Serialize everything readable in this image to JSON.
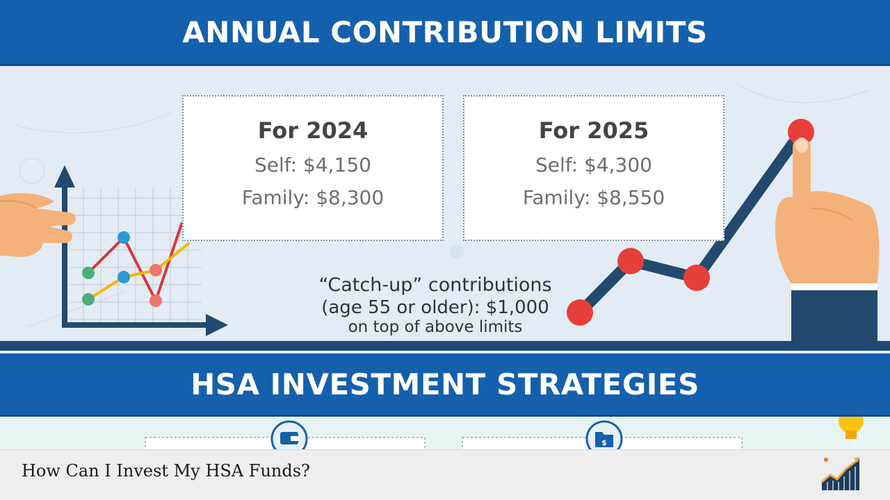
{
  "sections": {
    "contribution_title": "ANNUAL CONTRIBUTION LIMITS",
    "strategies_title": "HSA INVESTMENT STRATEGIES"
  },
  "cards": [
    {
      "year": "For 2024",
      "self": "Self: $4,150",
      "family": "Family: $8,300"
    },
    {
      "year": "For 2025",
      "self": "Self: $4,300",
      "family": "Family: $8,550"
    }
  ],
  "catchup": {
    "line1": "“Catch-up” contributions",
    "line2": "(age 55 or older): $1,000",
    "line3": "on top of above limits"
  },
  "caption": "How Can I Invest My HSA Funds?",
  "colors": {
    "banner_blue": "#1560ac",
    "dark_navy": "#234a6e",
    "marker_red": "#e63f3a",
    "line_orange": "#f7b500",
    "dot_green": "#4caf7d",
    "dot_blue": "#2d9ad6"
  },
  "icons": [
    "hand-left-icon",
    "growth-chart-icon",
    "pointing-hand-icon",
    "lightbulb-icon",
    "wallet-icon",
    "folder-dollar-icon",
    "site-logo-icon"
  ]
}
